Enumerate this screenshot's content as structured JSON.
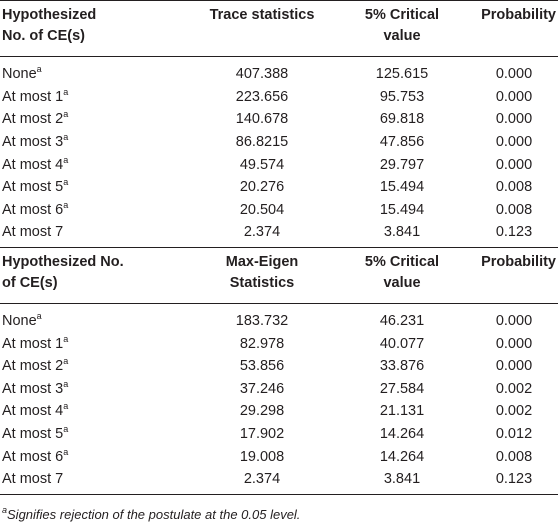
{
  "tables": [
    {
      "header": [
        "Hypothesized\nNo. of CE(s)",
        "Trace statistics",
        "5% Critical\nvalue",
        "Probability"
      ],
      "rows": [
        {
          "label": "None",
          "sup": "a",
          "cells": [
            "407.388",
            "125.615",
            "0.000"
          ]
        },
        {
          "label": "At most 1",
          "sup": "a",
          "cells": [
            "223.656",
            "95.753",
            "0.000"
          ]
        },
        {
          "label": "At most 2",
          "sup": "a",
          "cells": [
            "140.678",
            "69.818",
            "0.000"
          ]
        },
        {
          "label": "At most 3",
          "sup": "a",
          "cells": [
            "86.8215",
            "47.856",
            "0.000"
          ]
        },
        {
          "label": "At most 4",
          "sup": "a",
          "cells": [
            "49.574",
            "29.797",
            "0.000"
          ]
        },
        {
          "label": "At most 5",
          "sup": "a",
          "cells": [
            "20.276",
            "15.494",
            "0.008"
          ]
        },
        {
          "label": "At most 6",
          "sup": "a",
          "cells": [
            "20.504",
            "15.494",
            "0.008"
          ]
        },
        {
          "label": "At most 7",
          "cells": [
            "2.374",
            "3.841",
            "0.123"
          ]
        }
      ]
    },
    {
      "header": [
        "Hypothesized No.\nof CE(s)",
        "Max-Eigen\nStatistics",
        "5% Critical\nvalue",
        "Probability"
      ],
      "rows": [
        {
          "label": "None",
          "sup": "a",
          "cells": [
            "183.732",
            "46.231",
            "0.000"
          ]
        },
        {
          "label": "At most 1",
          "sup": "a",
          "cells": [
            "82.978",
            "40.077",
            "0.000"
          ]
        },
        {
          "label": "At most 2",
          "sup": "a",
          "cells": [
            "53.856",
            "33.876",
            "0.000"
          ]
        },
        {
          "label": "At most 3",
          "sup": "a",
          "cells": [
            "37.246",
            "27.584",
            "0.002"
          ]
        },
        {
          "label": "At most 4",
          "sup": "a",
          "cells": [
            "29.298",
            "21.131",
            "0.002"
          ]
        },
        {
          "label": "At most 5",
          "sup": "a",
          "cells": [
            "17.902",
            "14.264",
            "0.012"
          ]
        },
        {
          "label": "At most 6",
          "sup": "a",
          "cells": [
            "19.008",
            "14.264",
            "0.008"
          ]
        },
        {
          "label": "At most 7",
          "cells": [
            "2.374",
            "3.841",
            "0.123"
          ]
        }
      ]
    }
  ],
  "footnote": {
    "sup": "a",
    "text": "Signifies rejection of the postulate at the 0.05 level."
  }
}
